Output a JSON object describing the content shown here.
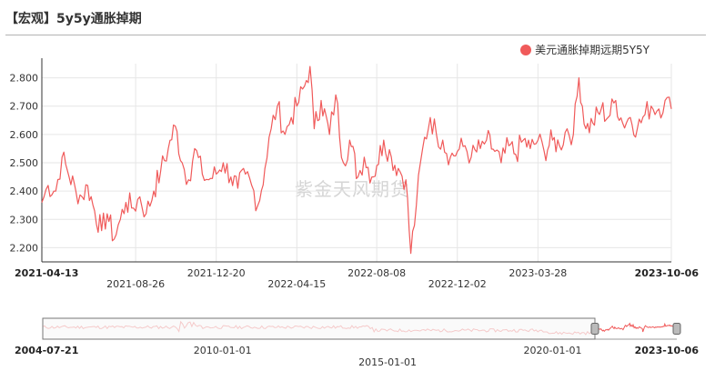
{
  "page_title": "【宏观】5y5y通胀掉期",
  "watermark": "紫金天风期货",
  "chart_data": {
    "type": "line",
    "title": "",
    "xlabel": "",
    "ylabel": "",
    "ylim": [
      2.15,
      2.85
    ],
    "yticks": [
      2.2,
      2.3,
      2.4,
      2.5,
      2.6,
      2.7,
      2.8
    ],
    "grid": true,
    "legend": "top-right",
    "x_start": "2021-04-13",
    "x_end": "2023-10-06",
    "xticks_row1": [
      "2021-04-13",
      "2021-12-20",
      "2022-08-08",
      "2023-03-28",
      "2023-10-06"
    ],
    "xticks_row2": [
      "2021-08-26",
      "2022-04-15",
      "2022-12-02"
    ],
    "series": [
      {
        "name": "美元通胀掉期远期5Y5Y",
        "color": "#f05a5a",
        "points": [
          [
            "2021-04-13",
            2.36
          ],
          [
            "2021-04-22",
            2.42
          ],
          [
            "2021-05-03",
            2.4
          ],
          [
            "2021-05-12",
            2.52
          ],
          [
            "2021-05-20",
            2.47
          ],
          [
            "2021-06-01",
            2.4
          ],
          [
            "2021-06-10",
            2.38
          ],
          [
            "2021-06-18",
            2.42
          ],
          [
            "2021-06-28",
            2.33
          ],
          [
            "2021-07-08",
            2.26
          ],
          [
            "2021-07-16",
            2.32
          ],
          [
            "2021-07-26",
            2.23
          ],
          [
            "2021-08-04",
            2.3
          ],
          [
            "2021-08-12",
            2.36
          ],
          [
            "2021-08-23",
            2.34
          ],
          [
            "2021-09-01",
            2.38
          ],
          [
            "2021-09-10",
            2.32
          ],
          [
            "2021-09-21",
            2.4
          ],
          [
            "2021-10-01",
            2.47
          ],
          [
            "2021-10-12",
            2.55
          ],
          [
            "2021-10-22",
            2.63
          ],
          [
            "2021-11-01",
            2.5
          ],
          [
            "2021-11-10",
            2.44
          ],
          [
            "2021-11-19",
            2.55
          ],
          [
            "2021-11-30",
            2.46
          ],
          [
            "2021-12-09",
            2.44
          ],
          [
            "2021-12-20",
            2.46
          ],
          [
            "2021-12-30",
            2.5
          ],
          [
            "2022-01-10",
            2.45
          ],
          [
            "2022-01-20",
            2.41
          ],
          [
            "2022-01-31",
            2.46
          ],
          [
            "2022-02-09",
            2.42
          ],
          [
            "2022-02-18",
            2.35
          ],
          [
            "2022-02-28",
            2.48
          ],
          [
            "2022-03-09",
            2.62
          ],
          [
            "2022-03-18",
            2.7
          ],
          [
            "2022-03-29",
            2.6
          ],
          [
            "2022-04-07",
            2.66
          ],
          [
            "2022-04-15",
            2.7
          ],
          [
            "2022-04-26",
            2.77
          ],
          [
            "2022-05-04",
            2.84
          ],
          [
            "2022-05-10",
            2.62
          ],
          [
            "2022-05-20",
            2.72
          ],
          [
            "2022-06-01",
            2.6
          ],
          [
            "2022-06-10",
            2.74
          ],
          [
            "2022-06-21",
            2.5
          ],
          [
            "2022-06-30",
            2.58
          ],
          [
            "2022-07-12",
            2.45
          ],
          [
            "2022-07-21",
            2.52
          ],
          [
            "2022-08-01",
            2.45
          ],
          [
            "2022-08-08",
            2.49
          ],
          [
            "2022-08-18",
            2.58
          ],
          [
            "2022-08-29",
            2.52
          ],
          [
            "2022-09-08",
            2.48
          ],
          [
            "2022-09-19",
            2.44
          ],
          [
            "2022-09-26",
            2.18
          ],
          [
            "2022-10-04",
            2.35
          ],
          [
            "2022-10-13",
            2.55
          ],
          [
            "2022-10-24",
            2.66
          ],
          [
            "2022-11-02",
            2.6
          ],
          [
            "2022-11-11",
            2.58
          ],
          [
            "2022-11-22",
            2.52
          ],
          [
            "2022-12-02",
            2.54
          ],
          [
            "2022-12-13",
            2.56
          ],
          [
            "2022-12-22",
            2.52
          ],
          [
            "2023-01-04",
            2.55
          ],
          [
            "2023-01-13",
            2.58
          ],
          [
            "2023-01-25",
            2.54
          ],
          [
            "2023-02-03",
            2.5
          ],
          [
            "2023-02-14",
            2.56
          ],
          [
            "2023-02-24",
            2.53
          ],
          [
            "2023-03-07",
            2.58
          ],
          [
            "2023-03-17",
            2.55
          ],
          [
            "2023-03-28",
            2.58
          ],
          [
            "2023-04-06",
            2.54
          ],
          [
            "2023-04-18",
            2.58
          ],
          [
            "2023-04-28",
            2.56
          ],
          [
            "2023-05-09",
            2.62
          ],
          [
            "2023-05-18",
            2.6
          ],
          [
            "2023-05-26",
            2.8
          ],
          [
            "2023-06-05",
            2.62
          ],
          [
            "2023-06-15",
            2.64
          ],
          [
            "2023-06-27",
            2.69
          ],
          [
            "2023-07-07",
            2.66
          ],
          [
            "2023-07-18",
            2.72
          ],
          [
            "2023-07-28",
            2.64
          ],
          [
            "2023-08-08",
            2.66
          ],
          [
            "2023-08-18",
            2.62
          ],
          [
            "2023-08-29",
            2.67
          ],
          [
            "2023-09-07",
            2.7
          ],
          [
            "2023-09-18",
            2.69
          ],
          [
            "2023-09-27",
            2.72
          ],
          [
            "2023-10-06",
            2.69
          ]
        ]
      }
    ]
  },
  "navigator": {
    "range_start": "2004-07-21",
    "range_end": "2023-10-06",
    "selected_start": "2021-04-13",
    "selected_end": "2023-10-06",
    "ticks_row1": [
      "2004-07-21",
      "2010-01-01",
      "2020-01-01",
      "2023-10-06"
    ],
    "ticks_row2": [
      "2015-01-01"
    ]
  }
}
